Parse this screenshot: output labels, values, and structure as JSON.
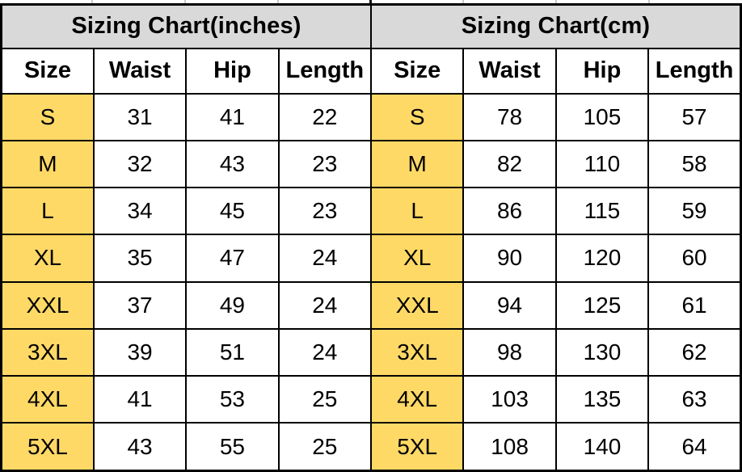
{
  "colors": {
    "header_bg": "#d9d9d9",
    "size_bg": "#ffd966",
    "border": "#000000",
    "text": "#000000",
    "tick": "#c9c9c9",
    "page_bg": "#ffffff"
  },
  "chart_data": [
    {
      "type": "table",
      "title": "Sizing Chart(inches)",
      "columns": [
        "Size",
        "Waist",
        "Hip",
        "Length"
      ],
      "rows": [
        [
          "S",
          "31",
          "41",
          "22"
        ],
        [
          "M",
          "32",
          "43",
          "23"
        ],
        [
          "L",
          "34",
          "45",
          "23"
        ],
        [
          "XL",
          "35",
          "47",
          "24"
        ],
        [
          "XXL",
          "37",
          "49",
          "24"
        ],
        [
          "3XL",
          "39",
          "51",
          "24"
        ],
        [
          "4XL",
          "41",
          "53",
          "25"
        ],
        [
          "5XL",
          "43",
          "55",
          "25"
        ]
      ]
    },
    {
      "type": "table",
      "title": "Sizing Chart(cm)",
      "columns": [
        "Size",
        "Waist",
        "Hip",
        "Length"
      ],
      "rows": [
        [
          "S",
          "78",
          "105",
          "57"
        ],
        [
          "M",
          "82",
          "110",
          "58"
        ],
        [
          "L",
          "86",
          "115",
          "59"
        ],
        [
          "XL",
          "90",
          "120",
          "60"
        ],
        [
          "XXL",
          "94",
          "125",
          "61"
        ],
        [
          "3XL",
          "98",
          "130",
          "62"
        ],
        [
          "4XL",
          "103",
          "135",
          "63"
        ],
        [
          "5XL",
          "108",
          "140",
          "64"
        ]
      ]
    }
  ]
}
